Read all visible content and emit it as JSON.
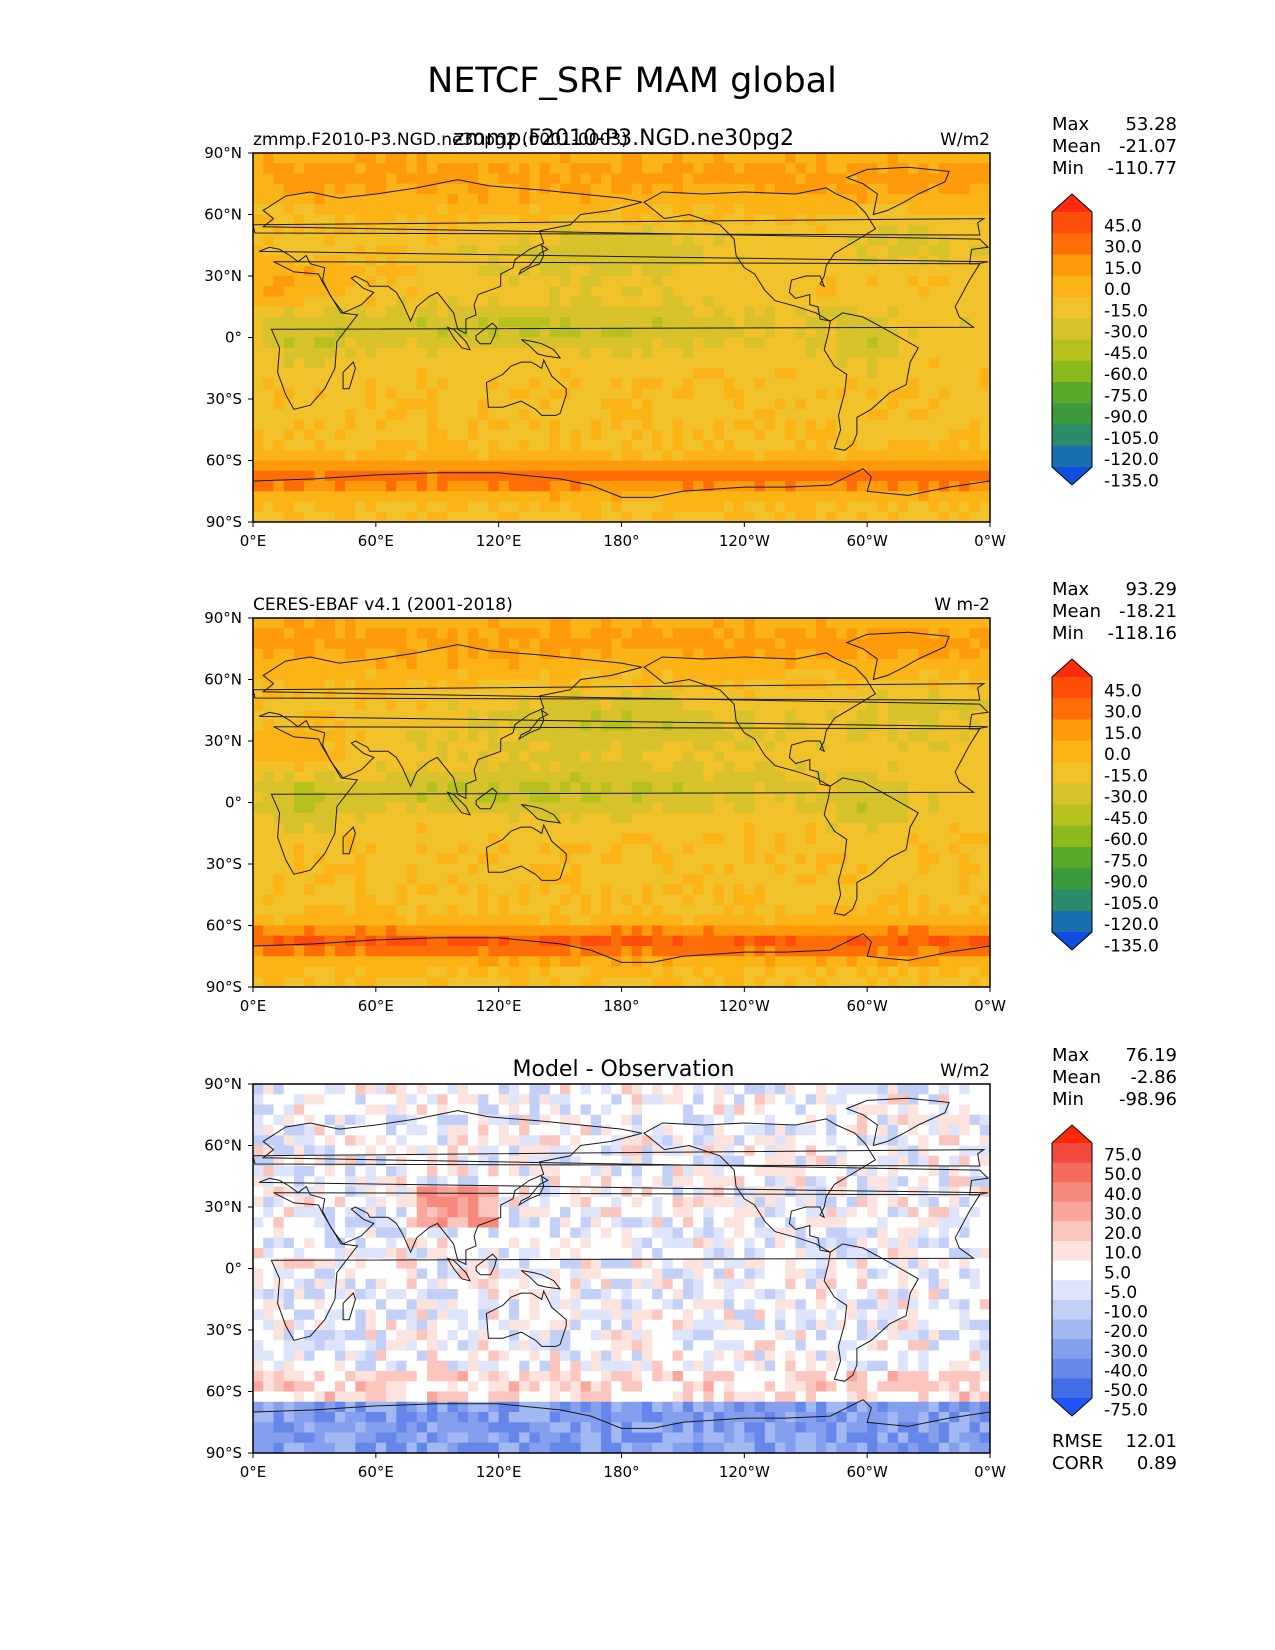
{
  "figure": {
    "title": "NETCF_SRF MAM global"
  },
  "chart_data": [
    {
      "type": "heatmap",
      "id": "panel_model",
      "left_title": "zmmp.F2010-P3.NGD.ne30pg2 (0001-0003)",
      "center_title": "zmmp.F2010-P3.NGD.ne30pg2",
      "units": "W/m2",
      "stats": [
        {
          "label": "Max",
          "value": "53.28"
        },
        {
          "label": "Mean",
          "value": "-21.07"
        },
        {
          "label": "Min",
          "value": "-110.77"
        }
      ],
      "x_ticks": [
        "0°E",
        "60°E",
        "120°E",
        "180°",
        "120°W",
        "60°W",
        "0°W"
      ],
      "y_ticks": [
        "90°N",
        "60°N",
        "30°N",
        "0°",
        "30°S",
        "60°S",
        "90°S"
      ],
      "xlim": [
        0,
        360
      ],
      "ylim": [
        -90,
        90
      ],
      "colorbar": {
        "levels": [
          "45.0",
          "30.0",
          "15.0",
          "0.0",
          "-15.0",
          "-30.0",
          "-45.0",
          "-60.0",
          "-75.0",
          "-90.0",
          "-105.0",
          "-120.0",
          "-135.0"
        ],
        "colors": [
          "#ff2a0f",
          "#ff4d0a",
          "#ff6e06",
          "#ff9a0a",
          "#fbb315",
          "#f2c22a",
          "#d8c22b",
          "#b7c11d",
          "#8cba1b",
          "#5aa82a",
          "#3a9a3c",
          "#2d8a6a",
          "#1a6fb0",
          "#0f4ee0"
        ],
        "extend": "both"
      }
    },
    {
      "type": "heatmap",
      "id": "panel_obs",
      "left_title": "CERES-EBAF v4.1 (2001-2018)",
      "center_title": "",
      "units": "W m-2",
      "stats": [
        {
          "label": "Max",
          "value": "93.29"
        },
        {
          "label": "Mean",
          "value": "-18.21"
        },
        {
          "label": "Min",
          "value": "-118.16"
        }
      ],
      "x_ticks": [
        "0°E",
        "60°E",
        "120°E",
        "180°",
        "120°W",
        "60°W",
        "0°W"
      ],
      "y_ticks": [
        "90°N",
        "60°N",
        "30°N",
        "0°",
        "30°S",
        "60°S",
        "90°S"
      ],
      "xlim": [
        0,
        360
      ],
      "ylim": [
        -90,
        90
      ],
      "colorbar": {
        "levels": [
          "45.0",
          "30.0",
          "15.0",
          "0.0",
          "-15.0",
          "-30.0",
          "-45.0",
          "-60.0",
          "-75.0",
          "-90.0",
          "-105.0",
          "-120.0",
          "-135.0"
        ],
        "colors": [
          "#ff2a0f",
          "#ff4d0a",
          "#ff6e06",
          "#ff9a0a",
          "#fbb315",
          "#f2c22a",
          "#d8c22b",
          "#b7c11d",
          "#8cba1b",
          "#5aa82a",
          "#3a9a3c",
          "#2d8a6a",
          "#1a6fb0",
          "#0f4ee0"
        ],
        "extend": "both"
      }
    },
    {
      "type": "heatmap",
      "id": "panel_diff",
      "left_title": "",
      "center_title": "Model - Observation",
      "units": "W/m2",
      "stats": [
        {
          "label": "Max",
          "value": "76.19"
        },
        {
          "label": "Mean",
          "value": "-2.86"
        },
        {
          "label": "Min",
          "value": "-98.96"
        }
      ],
      "extra_stats": [
        {
          "label": "RMSE",
          "value": "12.01"
        },
        {
          "label": "CORR",
          "value": "0.89"
        }
      ],
      "x_ticks": [
        "0°E",
        "60°E",
        "120°E",
        "180°",
        "120°W",
        "60°W",
        "0°W"
      ],
      "y_ticks": [
        "90°N",
        "60°N",
        "30°N",
        "0°",
        "30°S",
        "60°S",
        "90°S"
      ],
      "xlim": [
        0,
        360
      ],
      "ylim": [
        -90,
        90
      ],
      "colorbar": {
        "levels": [
          "75.0",
          "50.0",
          "40.0",
          "30.0",
          "20.0",
          "10.0",
          "5.0",
          "-5.0",
          "-10.0",
          "-20.0",
          "-30.0",
          "-40.0",
          "-50.0",
          "-75.0"
        ],
        "colors": [
          "#ff2a0a",
          "#f24b3e",
          "#f46a5c",
          "#f7887c",
          "#f9a79c",
          "#fbc6bd",
          "#fde3de",
          "#ffffff",
          "#dde4fb",
          "#c2d0f7",
          "#a2b8f2",
          "#839fee",
          "#6587ea",
          "#436ee6",
          "#1f55f8"
        ],
        "extend": "both"
      }
    }
  ]
}
